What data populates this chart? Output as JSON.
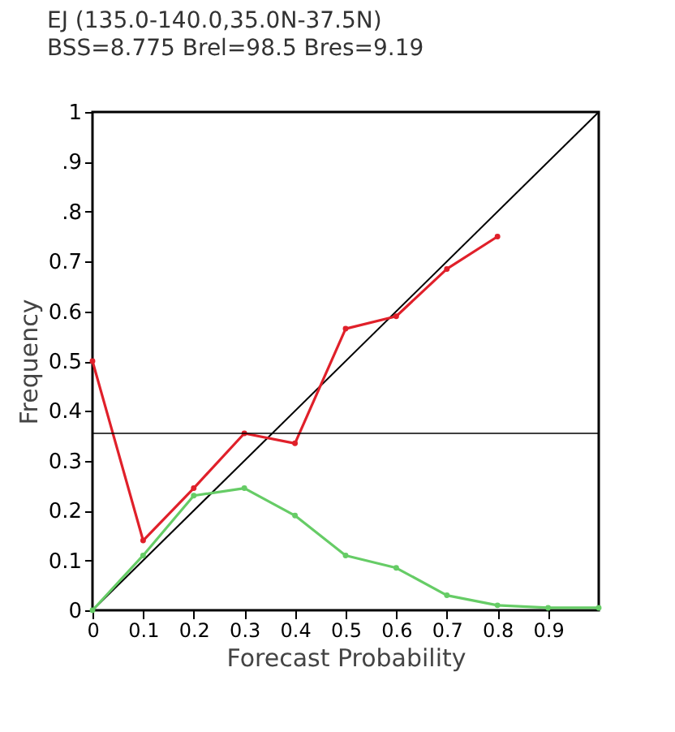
{
  "chart_data": {
    "type": "line",
    "title": "EJ (135.0-140.0,35.0N-37.5N)",
    "subtitle": "BSS=8.775   Brel=98.5   Bres=9.19",
    "xlabel": "Forecast Probability",
    "ylabel": "Frequency",
    "xlim": [
      0,
      1
    ],
    "ylim": [
      0,
      1
    ],
    "xticks": [
      0,
      0.1,
      0.2,
      0.3,
      0.4,
      0.5,
      0.6,
      0.7,
      0.8,
      0.9
    ],
    "yticks": [
      0,
      0.1,
      0.2,
      0.3,
      0.4,
      0.5,
      0.6,
      0.7,
      {
        "value": 0.8,
        "label": ".8"
      },
      {
        "value": 0.9,
        "label": ".9"
      },
      1
    ],
    "grid": false,
    "series": [
      {
        "color": "#000000",
        "marker": "none",
        "x": [
          0,
          1
        ],
        "values": [
          0,
          1
        ]
      },
      {
        "color": "#66cc66",
        "marker": "circle",
        "x": [
          0,
          0.1,
          0.2,
          0.3,
          0.4,
          0.5,
          0.6,
          0.7,
          0.8,
          0.9,
          1
        ],
        "values": [
          0,
          0.11,
          0.23,
          0.245,
          0.19,
          0.11,
          0.085,
          0.03,
          0.01,
          0.005,
          0.005
        ]
      },
      {
        "color": "#e0202a",
        "marker": "circle",
        "x": [
          0,
          0.1,
          0.2,
          0.3,
          0.4,
          0.5,
          0.6,
          0.7,
          0.8
        ],
        "values": [
          0.5,
          0.14,
          0.245,
          0.355,
          0.335,
          0.565,
          0.59,
          0.685,
          0.75
        ]
      }
    ],
    "ref_lines": [
      {
        "axis": "y",
        "value": 0.355,
        "color": "#000000"
      }
    ]
  }
}
